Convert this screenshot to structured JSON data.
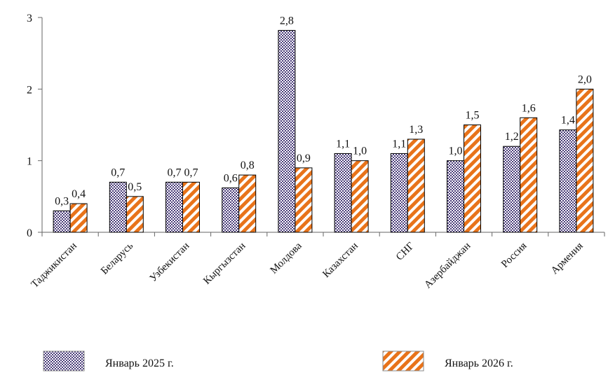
{
  "chart_data": {
    "type": "bar",
    "title": "",
    "xlabel": "",
    "ylabel": "",
    "ylim": [
      0,
      3
    ],
    "yticks": [
      0,
      1,
      2,
      3
    ],
    "grid": false,
    "legend_position": "bottom",
    "categories": [
      "Таджикистан",
      "Беларусь",
      "Узбекистан",
      "Кыргызстан",
      "Молдова",
      "Казахстан",
      "СНГ",
      "Азербайджан",
      "Россия",
      "Армения"
    ],
    "series": [
      {
        "name": "Январь 2025 г.",
        "values": [
          0.3,
          0.7,
          0.7,
          0.62,
          2.82,
          1.1,
          1.1,
          1.0,
          1.2,
          1.43
        ],
        "labels": [
          "0,3",
          "0,7",
          "0,7",
          "0,6",
          "2,8",
          "1,1",
          "1,1",
          "1,0",
          "1,2",
          "1,4"
        ],
        "pattern": "checker",
        "colors": [
          "#4a3c7a",
          "#ffffff"
        ]
      },
      {
        "name": "Январь 2026 г.",
        "values": [
          0.4,
          0.5,
          0.7,
          0.8,
          0.9,
          1.0,
          1.3,
          1.5,
          1.6,
          2.0
        ],
        "labels": [
          "0,4",
          "0,5",
          "0,7",
          "0,8",
          "0,9",
          "1,0",
          "1,3",
          "1,5",
          "1,6",
          "2,0"
        ],
        "pattern": "diagonal-stripes",
        "colors": [
          "#e8731a",
          "#ffffff"
        ]
      }
    ]
  }
}
